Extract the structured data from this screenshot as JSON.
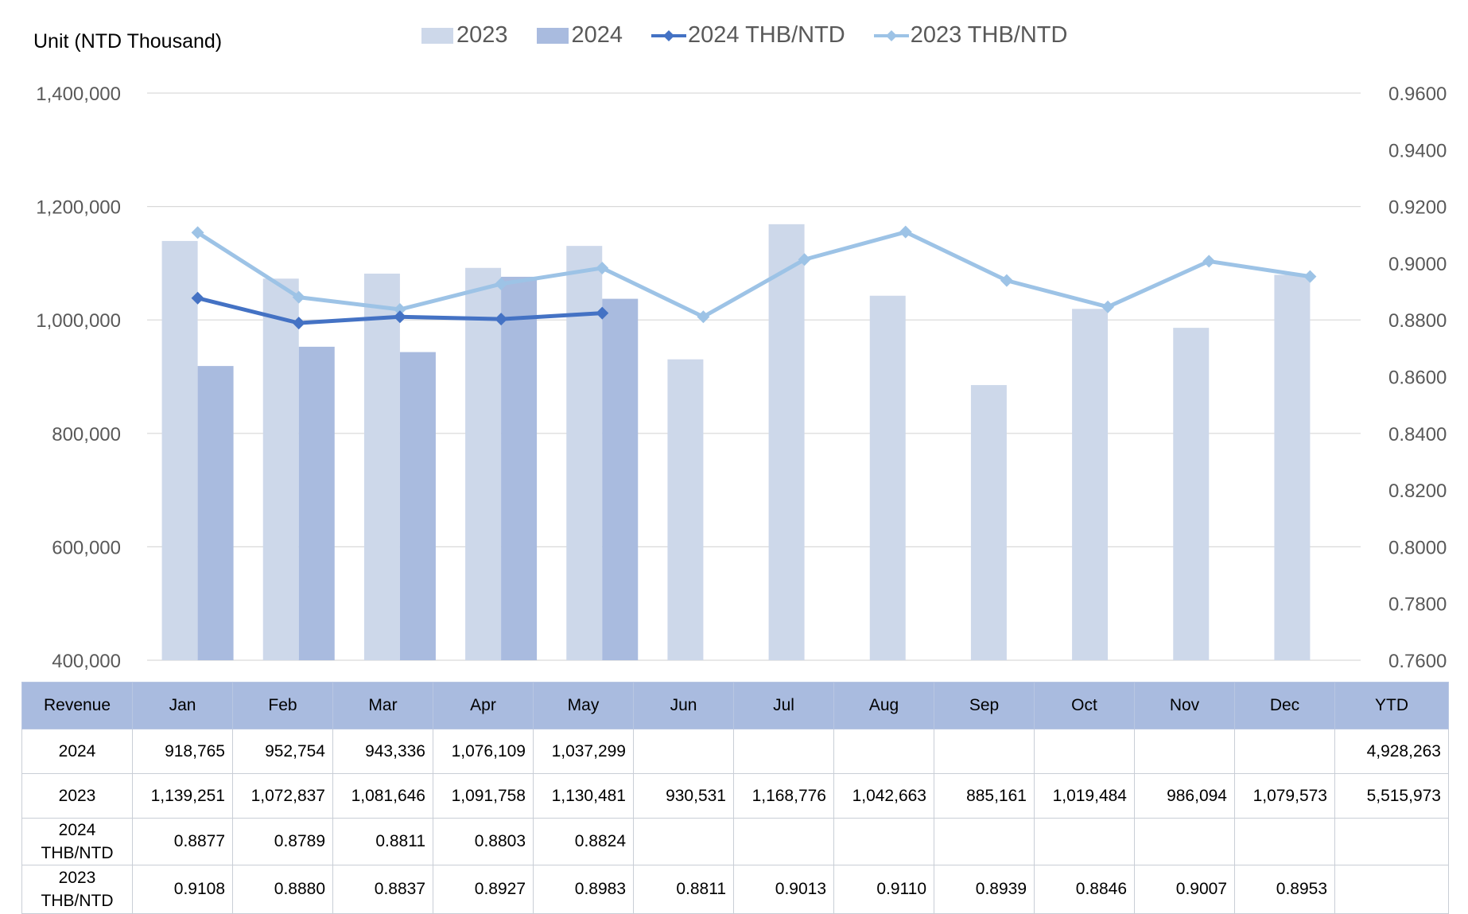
{
  "unit_label": "Unit (NTD  Thousand)",
  "legend": [
    {
      "label": "2023",
      "kind": "bar",
      "color": "#cdd8ea"
    },
    {
      "label": "2024",
      "kind": "bar",
      "color": "#a9bbdf"
    },
    {
      "label": "2024 THB/NTD",
      "kind": "line",
      "color": "#4472c4"
    },
    {
      "label": "2023 THB/NTD",
      "kind": "line",
      "color": "#9dc3e6"
    }
  ],
  "chart_data": {
    "type": "bar",
    "categories": [
      "Jan",
      "Feb",
      "Mar",
      "Apr",
      "May",
      "Jun",
      "Jul",
      "Aug",
      "Sep",
      "Oct",
      "Nov",
      "Dec"
    ],
    "series": [
      {
        "name": "2023",
        "kind": "bar",
        "axis": "left",
        "color": "#cdd8ea",
        "values": [
          1139251,
          1072837,
          1081646,
          1091758,
          1130481,
          930531,
          1168776,
          1042663,
          885161,
          1019484,
          986094,
          1079573
        ]
      },
      {
        "name": "2024",
        "kind": "bar",
        "axis": "left",
        "color": "#a9bbdf",
        "values": [
          918765,
          952754,
          943336,
          1076109,
          1037299,
          null,
          null,
          null,
          null,
          null,
          null,
          null
        ]
      },
      {
        "name": "2024 THB/NTD",
        "kind": "line",
        "axis": "right",
        "color": "#4472c4",
        "values": [
          0.8877,
          0.8789,
          0.8811,
          0.8803,
          0.8824,
          null,
          null,
          null,
          null,
          null,
          null,
          null
        ]
      },
      {
        "name": "2023 THB/NTD",
        "kind": "line",
        "axis": "right",
        "color": "#9dc3e6",
        "values": [
          0.9108,
          0.888,
          0.8837,
          0.8927,
          0.8983,
          0.8811,
          0.9013,
          0.911,
          0.8939,
          0.8846,
          0.9007,
          0.8953
        ]
      }
    ],
    "y_left": {
      "min": 400000,
      "max": 1400000,
      "ticks": [
        "400,000",
        "600,000",
        "800,000",
        "1,000,000",
        "1,200,000",
        "1,400,000"
      ]
    },
    "y_right": {
      "min": 0.76,
      "max": 0.96,
      "ticks": [
        "0.7600",
        "0.7800",
        "0.8000",
        "0.8200",
        "0.8400",
        "0.8600",
        "0.8800",
        "0.9000",
        "0.9200",
        "0.9400",
        "0.9600"
      ]
    },
    "grid": true,
    "legend_position": "top"
  },
  "table": {
    "headers": [
      "Revenue",
      "Jan",
      "Feb",
      "Mar",
      "Apr",
      "May",
      "Jun",
      "Jul",
      "Aug",
      "Sep",
      "Oct",
      "Nov",
      "Dec",
      "YTD"
    ],
    "rows": [
      {
        "label": [
          "2024"
        ],
        "cells": [
          "918,765",
          "952,754",
          "943,336",
          "1,076,109",
          "1,037,299",
          "",
          "",
          "",
          "",
          "",
          "",
          "",
          "4,928,263"
        ]
      },
      {
        "label": [
          "2023"
        ],
        "cells": [
          "1,139,251",
          "1,072,837",
          "1,081,646",
          "1,091,758",
          "1,130,481",
          "930,531",
          "1,168,776",
          "1,042,663",
          "885,161",
          "1,019,484",
          "986,094",
          "1,079,573",
          "5,515,973"
        ]
      },
      {
        "label": [
          "2024",
          "THB/NTD"
        ],
        "cells": [
          "0.8877",
          "0.8789",
          "0.8811",
          "0.8803",
          "0.8824",
          "",
          "",
          "",
          "",
          "",
          "",
          "",
          ""
        ]
      },
      {
        "label": [
          "2023",
          "THB/NTD"
        ],
        "cells": [
          "0.9108",
          "0.8880",
          "0.8837",
          "0.8927",
          "0.8983",
          "0.8811",
          "0.9013",
          "0.9110",
          "0.8939",
          "0.8846",
          "0.9007",
          "0.8953",
          ""
        ]
      }
    ]
  }
}
